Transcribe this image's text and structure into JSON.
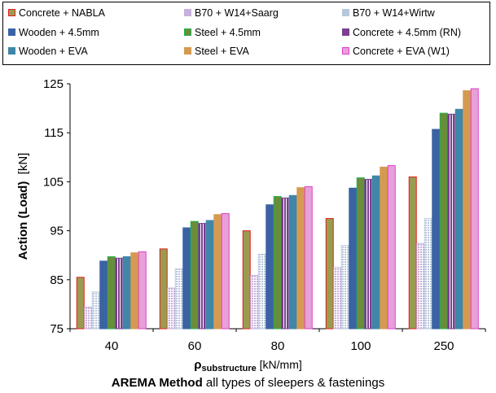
{
  "chart_data": {
    "type": "bar",
    "categories": [
      "40",
      "60",
      "80",
      "100",
      "250"
    ],
    "ylabel": "Action (Load)",
    "ylabel_unit": "[kN]",
    "ylim": [
      75,
      125
    ],
    "yticks": [
      75,
      85,
      95,
      105,
      115,
      125
    ],
    "grid": false,
    "legend_position": "top",
    "series": [
      {
        "name": "Concrete + NABLA",
        "color": "#9B9B4F",
        "border": "#E02020",
        "pattern": "solid",
        "values": [
          85.5,
          91.3,
          95.0,
          97.5,
          106.0
        ]
      },
      {
        "name": "B70 +  W14+Saarg",
        "color": "#C7B0DC",
        "border": "#C7B0DC",
        "pattern": "dotted",
        "values": [
          79.4,
          83.3,
          85.9,
          87.5,
          92.4
        ]
      },
      {
        "name": "B70 + W14+Wirtw",
        "color": "#B8C7DC",
        "border": "#B8C7DC",
        "pattern": "dotted",
        "values": [
          82.5,
          87.2,
          90.2,
          92.0,
          97.5
        ]
      },
      {
        "name": "Wooden + 4.5mm",
        "color": "#3B63A3",
        "border": "#3B63A3",
        "pattern": "solid",
        "values": [
          88.8,
          95.6,
          100.3,
          103.7,
          115.7
        ]
      },
      {
        "name": "Steel + 4.5mm",
        "color": "#6A8D3A",
        "border": "#22B14C",
        "pattern": "solid",
        "values": [
          89.7,
          96.9,
          102.0,
          105.8,
          119.0
        ]
      },
      {
        "name": "Concrete + 4.5mm (RN)",
        "color": "#7A3F8F",
        "border": "#7A3F8F",
        "pattern": "dashed",
        "values": [
          89.4,
          96.5,
          101.7,
          105.5,
          118.8
        ]
      },
      {
        "name": "Wooden + EVA",
        "color": "#3F86A8",
        "border": "#3F86A8",
        "pattern": "solid",
        "values": [
          89.7,
          97.1,
          102.2,
          106.2,
          119.8
        ]
      },
      {
        "name": "Steel + EVA",
        "color": "#D59A52",
        "border": "#D59A52",
        "pattern": "solid",
        "values": [
          90.5,
          98.3,
          103.8,
          108.0,
          123.6
        ]
      },
      {
        "name": "Concrete + EVA (W1)",
        "color": "#E8A0D8",
        "border": "#E040C8",
        "pattern": "solid",
        "values": [
          90.7,
          98.5,
          104.0,
          108.3,
          124.0
        ]
      }
    ],
    "xlabel_symbol": "ρ",
    "xlabel_subscript": "substructure",
    "xlabel_unit": "[kN/mm]",
    "caption_bold": "AREMA Method",
    "caption_rest": " all types of sleepers & fastenings"
  }
}
